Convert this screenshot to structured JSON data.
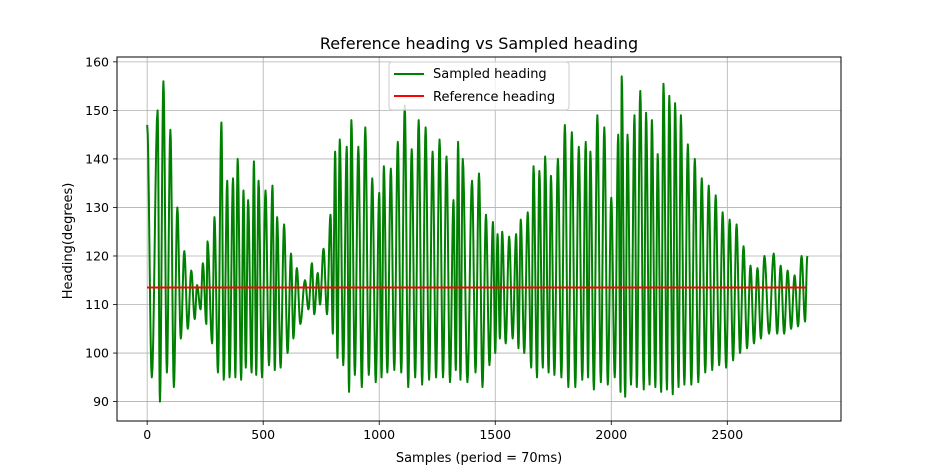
{
  "chart_data": {
    "type": "line",
    "title": "Reference heading vs Sampled heading",
    "xlabel": "Samples (period = 70ms)",
    "ylabel": "Heading(degrees)",
    "xlim": [
      -130,
      2990
    ],
    "ylim": [
      86,
      161
    ],
    "xticks": [
      0,
      500,
      1000,
      1500,
      2000,
      2500
    ],
    "yticks": [
      90,
      100,
      110,
      120,
      130,
      140,
      150,
      160
    ],
    "grid": true,
    "legend_position": "top-center",
    "series": [
      {
        "name": "Sampled heading",
        "color": "#008000",
        "peaks": [
          [
            0,
            147
          ],
          [
            45,
            150
          ],
          [
            70,
            156
          ],
          [
            100,
            146
          ],
          [
            130,
            130
          ],
          [
            160,
            121
          ],
          [
            190,
            117
          ],
          [
            215,
            114
          ],
          [
            240,
            118.5
          ],
          [
            260,
            123
          ],
          [
            290,
            128
          ],
          [
            320,
            147.5
          ],
          [
            345,
            135.5
          ],
          [
            370,
            136
          ],
          [
            390,
            140
          ],
          [
            415,
            133.5
          ],
          [
            435,
            131.5
          ],
          [
            460,
            139.5
          ],
          [
            480,
            135.5
          ],
          [
            510,
            133.5
          ],
          [
            540,
            134.5
          ],
          [
            560,
            128
          ],
          [
            590,
            126.5
          ],
          [
            620,
            120.5
          ],
          [
            645,
            117.5
          ],
          [
            680,
            115
          ],
          [
            710,
            118.5
          ],
          [
            735,
            116.5
          ],
          [
            760,
            121.5
          ],
          [
            790,
            128.5
          ],
          [
            810,
            141.5
          ],
          [
            830,
            144
          ],
          [
            860,
            142.5
          ],
          [
            880,
            148
          ],
          [
            910,
            142.5
          ],
          [
            940,
            146.5
          ],
          [
            970,
            136
          ],
          [
            1000,
            133
          ],
          [
            1020,
            138.5
          ],
          [
            1050,
            138
          ],
          [
            1080,
            143.5
          ],
          [
            1110,
            151
          ],
          [
            1140,
            142
          ],
          [
            1170,
            148
          ],
          [
            1200,
            146.5
          ],
          [
            1230,
            141.5
          ],
          [
            1260,
            144
          ],
          [
            1290,
            140.5
          ],
          [
            1320,
            131.5
          ],
          [
            1340,
            143.5
          ],
          [
            1360,
            140
          ],
          [
            1400,
            135.5
          ],
          [
            1430,
            137
          ],
          [
            1460,
            128.5
          ],
          [
            1490,
            127
          ],
          [
            1510,
            124.5
          ],
          [
            1530,
            125
          ],
          [
            1560,
            124
          ],
          [
            1590,
            124.5
          ],
          [
            1610,
            127.5
          ],
          [
            1640,
            129
          ],
          [
            1665,
            138.5
          ],
          [
            1690,
            137.5
          ],
          [
            1715,
            140.5
          ],
          [
            1740,
            136.5
          ],
          [
            1770,
            140
          ],
          [
            1800,
            147
          ],
          [
            1830,
            145.5
          ],
          [
            1860,
            142.5
          ],
          [
            1890,
            143.5
          ],
          [
            1910,
            141.5
          ],
          [
            1940,
            149
          ],
          [
            1970,
            146.5
          ],
          [
            2000,
            132
          ],
          [
            2030,
            145
          ],
          [
            2045,
            157
          ],
          [
            2070,
            145
          ],
          [
            2100,
            149
          ],
          [
            2125,
            154
          ],
          [
            2150,
            149.5
          ],
          [
            2175,
            148
          ],
          [
            2200,
            141
          ],
          [
            2225,
            155.5
          ],
          [
            2250,
            153
          ],
          [
            2275,
            151.5
          ],
          [
            2300,
            149
          ],
          [
            2330,
            143
          ],
          [
            2360,
            140
          ],
          [
            2390,
            136
          ],
          [
            2420,
            134.5
          ],
          [
            2450,
            132.5
          ],
          [
            2480,
            129
          ],
          [
            2510,
            127.5
          ],
          [
            2540,
            126.5
          ],
          [
            2570,
            122
          ],
          [
            2600,
            118
          ],
          [
            2630,
            117.5
          ],
          [
            2660,
            120
          ],
          [
            2700,
            120.5
          ],
          [
            2730,
            118
          ],
          [
            2760,
            117
          ],
          [
            2790,
            116
          ],
          [
            2820,
            120
          ],
          [
            2845,
            120
          ]
        ],
        "troughs": [
          [
            20,
            95
          ],
          [
            55,
            90
          ],
          [
            85,
            96
          ],
          [
            115,
            93
          ],
          [
            145,
            103
          ],
          [
            175,
            105
          ],
          [
            205,
            107
          ],
          [
            230,
            109
          ],
          [
            255,
            106
          ],
          [
            280,
            102
          ],
          [
            305,
            96
          ],
          [
            330,
            94.5
          ],
          [
            355,
            95
          ],
          [
            380,
            95
          ],
          [
            405,
            94.5
          ],
          [
            425,
            97
          ],
          [
            450,
            96
          ],
          [
            470,
            95.5
          ],
          [
            495,
            95
          ],
          [
            525,
            97.5
          ],
          [
            550,
            96.5
          ],
          [
            575,
            97
          ],
          [
            605,
            100
          ],
          [
            630,
            103
          ],
          [
            660,
            106
          ],
          [
            695,
            109
          ],
          [
            720,
            108
          ],
          [
            745,
            110
          ],
          [
            775,
            108
          ],
          [
            800,
            104
          ],
          [
            820,
            99
          ],
          [
            845,
            97.5
          ],
          [
            870,
            92
          ],
          [
            895,
            95.5
          ],
          [
            925,
            93
          ],
          [
            955,
            95.5
          ],
          [
            985,
            94
          ],
          [
            1010,
            95
          ],
          [
            1035,
            96
          ],
          [
            1065,
            96.5
          ],
          [
            1095,
            96
          ],
          [
            1125,
            93
          ],
          [
            1155,
            95
          ],
          [
            1185,
            93.5
          ],
          [
            1215,
            94.5
          ],
          [
            1245,
            95
          ],
          [
            1275,
            95
          ],
          [
            1305,
            94
          ],
          [
            1330,
            96.5
          ],
          [
            1350,
            94.5
          ],
          [
            1380,
            94
          ],
          [
            1415,
            96
          ],
          [
            1445,
            93
          ],
          [
            1475,
            97.5
          ],
          [
            1500,
            100
          ],
          [
            1520,
            103
          ],
          [
            1545,
            102
          ],
          [
            1575,
            103
          ],
          [
            1600,
            101
          ],
          [
            1625,
            100
          ],
          [
            1655,
            97
          ],
          [
            1680,
            95
          ],
          [
            1705,
            97
          ],
          [
            1730,
            96
          ],
          [
            1755,
            95.5
          ],
          [
            1785,
            95
          ],
          [
            1815,
            93
          ],
          [
            1845,
            93
          ],
          [
            1875,
            94.5
          ],
          [
            1900,
            95
          ],
          [
            1925,
            92.5
          ],
          [
            1955,
            94
          ],
          [
            1985,
            93.5
          ],
          [
            2015,
            95
          ],
          [
            2040,
            92
          ],
          [
            2060,
            91
          ],
          [
            2085,
            93.5
          ],
          [
            2110,
            93
          ],
          [
            2140,
            92.5
          ],
          [
            2165,
            93.5
          ],
          [
            2190,
            93
          ],
          [
            2215,
            92
          ],
          [
            2240,
            92.5
          ],
          [
            2265,
            91.5
          ],
          [
            2290,
            93
          ],
          [
            2315,
            93.5
          ],
          [
            2345,
            93.5
          ],
          [
            2375,
            94
          ],
          [
            2405,
            96
          ],
          [
            2435,
            96.5
          ],
          [
            2465,
            97.5
          ],
          [
            2495,
            97
          ],
          [
            2525,
            98.5
          ],
          [
            2555,
            100
          ],
          [
            2585,
            101
          ],
          [
            2615,
            102
          ],
          [
            2645,
            103
          ],
          [
            2680,
            104
          ],
          [
            2715,
            104
          ],
          [
            2745,
            104
          ],
          [
            2775,
            105
          ],
          [
            2805,
            105.5
          ],
          [
            2835,
            106.5
          ]
        ]
      },
      {
        "name": "Reference heading",
        "color": "#ff0000",
        "x": [
          0,
          2840
        ],
        "values": [
          113.5,
          113.5
        ]
      }
    ]
  }
}
